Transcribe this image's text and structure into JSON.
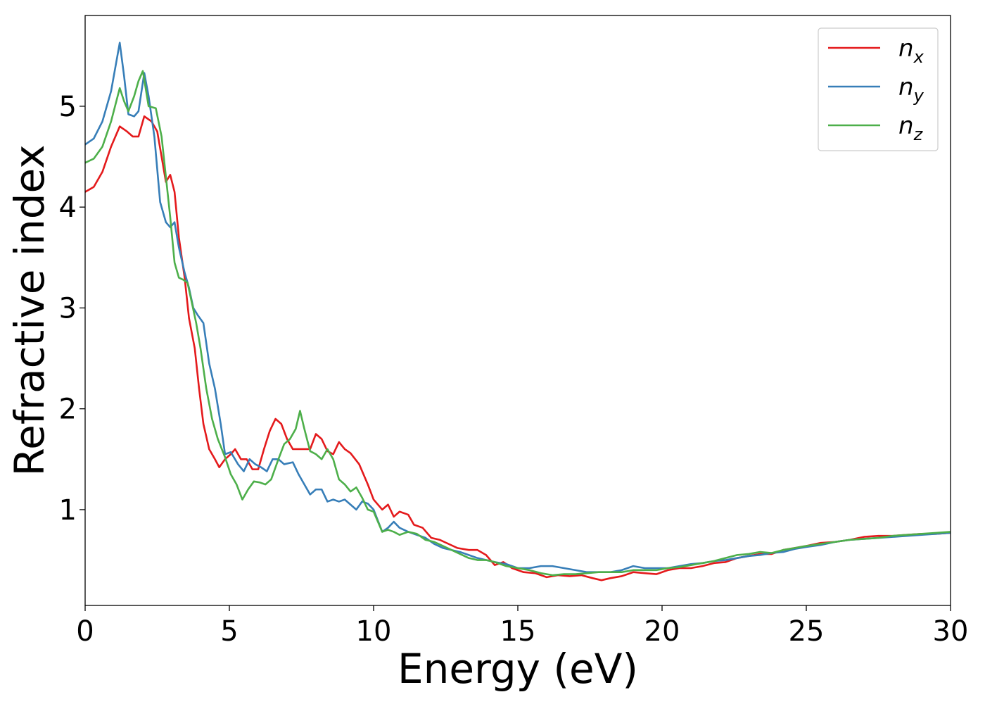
{
  "chart_data": {
    "type": "line",
    "xlabel": "Energy (eV)",
    "ylabel": "Refractive index",
    "xlim": [
      0,
      30
    ],
    "ylim": [
      0.05,
      5.9
    ],
    "xticks": [
      0,
      5,
      10,
      15,
      20,
      25,
      30
    ],
    "yticks": [
      1,
      2,
      3,
      4,
      5
    ],
    "grid": false,
    "legend_position": "top-right",
    "series": [
      {
        "name": "n",
        "subscript": "x",
        "color": "#e41a1c",
        "points": [
          [
            0,
            4.15
          ],
          [
            0.3,
            4.2
          ],
          [
            0.6,
            4.35
          ],
          [
            0.9,
            4.6
          ],
          [
            1.2,
            4.8
          ],
          [
            1.45,
            4.75
          ],
          [
            1.65,
            4.7
          ],
          [
            1.85,
            4.7
          ],
          [
            2.05,
            4.9
          ],
          [
            2.3,
            4.85
          ],
          [
            2.5,
            4.75
          ],
          [
            2.65,
            4.5
          ],
          [
            2.8,
            4.25
          ],
          [
            2.95,
            4.32
          ],
          [
            3.1,
            4.15
          ],
          [
            3.25,
            3.7
          ],
          [
            3.45,
            3.3
          ],
          [
            3.6,
            2.9
          ],
          [
            3.8,
            2.6
          ],
          [
            3.95,
            2.2
          ],
          [
            4.1,
            1.85
          ],
          [
            4.3,
            1.6
          ],
          [
            4.5,
            1.5
          ],
          [
            4.65,
            1.42
          ],
          [
            4.85,
            1.5
          ],
          [
            5.05,
            1.55
          ],
          [
            5.2,
            1.6
          ],
          [
            5.4,
            1.5
          ],
          [
            5.6,
            1.5
          ],
          [
            5.8,
            1.4
          ],
          [
            6.0,
            1.4
          ],
          [
            6.2,
            1.6
          ],
          [
            6.4,
            1.78
          ],
          [
            6.6,
            1.9
          ],
          [
            6.8,
            1.85
          ],
          [
            7.0,
            1.7
          ],
          [
            7.2,
            1.6
          ],
          [
            7.5,
            1.6
          ],
          [
            7.8,
            1.6
          ],
          [
            8.0,
            1.75
          ],
          [
            8.2,
            1.7
          ],
          [
            8.4,
            1.58
          ],
          [
            8.6,
            1.55
          ],
          [
            8.8,
            1.67
          ],
          [
            9.0,
            1.6
          ],
          [
            9.2,
            1.56
          ],
          [
            9.5,
            1.45
          ],
          [
            9.8,
            1.25
          ],
          [
            10.0,
            1.1
          ],
          [
            10.3,
            1.0
          ],
          [
            10.5,
            1.05
          ],
          [
            10.7,
            0.93
          ],
          [
            10.9,
            0.98
          ],
          [
            11.2,
            0.95
          ],
          [
            11.4,
            0.85
          ],
          [
            11.7,
            0.82
          ],
          [
            12.0,
            0.72
          ],
          [
            12.3,
            0.7
          ],
          [
            12.6,
            0.66
          ],
          [
            12.9,
            0.62
          ],
          [
            13.3,
            0.6
          ],
          [
            13.6,
            0.6
          ],
          [
            13.9,
            0.55
          ],
          [
            14.2,
            0.45
          ],
          [
            14.5,
            0.48
          ],
          [
            14.8,
            0.42
          ],
          [
            15.2,
            0.38
          ],
          [
            15.6,
            0.37
          ],
          [
            16.0,
            0.33
          ],
          [
            16.4,
            0.35
          ],
          [
            16.8,
            0.34
          ],
          [
            17.2,
            0.35
          ],
          [
            17.6,
            0.32
          ],
          [
            17.9,
            0.3
          ],
          [
            18.2,
            0.32
          ],
          [
            18.6,
            0.34
          ],
          [
            19.0,
            0.38
          ],
          [
            19.4,
            0.37
          ],
          [
            19.8,
            0.36
          ],
          [
            20.2,
            0.4
          ],
          [
            20.6,
            0.42
          ],
          [
            21.0,
            0.42
          ],
          [
            21.4,
            0.44
          ],
          [
            21.8,
            0.47
          ],
          [
            22.2,
            0.48
          ],
          [
            22.6,
            0.52
          ],
          [
            23.0,
            0.54
          ],
          [
            23.4,
            0.56
          ],
          [
            23.8,
            0.56
          ],
          [
            24.2,
            0.6
          ],
          [
            24.6,
            0.62
          ],
          [
            25.0,
            0.64
          ],
          [
            25.5,
            0.67
          ],
          [
            26.0,
            0.68
          ],
          [
            26.5,
            0.7
          ],
          [
            27.0,
            0.73
          ],
          [
            27.5,
            0.74
          ],
          [
            28.0,
            0.74
          ],
          [
            28.5,
            0.75
          ],
          [
            29.0,
            0.76
          ],
          [
            29.5,
            0.76
          ],
          [
            30.0,
            0.77
          ]
        ]
      },
      {
        "name": "n",
        "subscript": "y",
        "color": "#377eb8",
        "points": [
          [
            0,
            4.62
          ],
          [
            0.3,
            4.68
          ],
          [
            0.6,
            4.85
          ],
          [
            0.9,
            5.15
          ],
          [
            1.2,
            5.63
          ],
          [
            1.35,
            5.3
          ],
          [
            1.5,
            4.92
          ],
          [
            1.7,
            4.9
          ],
          [
            1.85,
            4.95
          ],
          [
            2.05,
            5.33
          ],
          [
            2.2,
            5.1
          ],
          [
            2.4,
            4.7
          ],
          [
            2.6,
            4.05
          ],
          [
            2.8,
            3.85
          ],
          [
            2.95,
            3.8
          ],
          [
            3.1,
            3.85
          ],
          [
            3.25,
            3.6
          ],
          [
            3.45,
            3.35
          ],
          [
            3.6,
            3.2
          ],
          [
            3.75,
            3.0
          ],
          [
            3.9,
            2.93
          ],
          [
            4.1,
            2.85
          ],
          [
            4.3,
            2.45
          ],
          [
            4.5,
            2.2
          ],
          [
            4.7,
            1.85
          ],
          [
            4.85,
            1.55
          ],
          [
            5.05,
            1.57
          ],
          [
            5.3,
            1.45
          ],
          [
            5.5,
            1.38
          ],
          [
            5.7,
            1.5
          ],
          [
            5.9,
            1.45
          ],
          [
            6.1,
            1.42
          ],
          [
            6.3,
            1.38
          ],
          [
            6.5,
            1.5
          ],
          [
            6.7,
            1.5
          ],
          [
            6.9,
            1.45
          ],
          [
            7.2,
            1.47
          ],
          [
            7.4,
            1.35
          ],
          [
            7.6,
            1.25
          ],
          [
            7.8,
            1.15
          ],
          [
            8.0,
            1.2
          ],
          [
            8.2,
            1.2
          ],
          [
            8.4,
            1.08
          ],
          [
            8.6,
            1.1
          ],
          [
            8.8,
            1.08
          ],
          [
            9.0,
            1.1
          ],
          [
            9.2,
            1.05
          ],
          [
            9.4,
            1.0
          ],
          [
            9.6,
            1.08
          ],
          [
            9.8,
            1.06
          ],
          [
            10.0,
            1.0
          ],
          [
            10.3,
            0.78
          ],
          [
            10.5,
            0.82
          ],
          [
            10.7,
            0.88
          ],
          [
            10.9,
            0.82
          ],
          [
            11.2,
            0.78
          ],
          [
            11.5,
            0.75
          ],
          [
            11.8,
            0.72
          ],
          [
            12.1,
            0.66
          ],
          [
            12.4,
            0.62
          ],
          [
            12.7,
            0.6
          ],
          [
            13.0,
            0.58
          ],
          [
            13.3,
            0.55
          ],
          [
            13.6,
            0.52
          ],
          [
            13.9,
            0.5
          ],
          [
            14.2,
            0.48
          ],
          [
            14.6,
            0.46
          ],
          [
            15.0,
            0.42
          ],
          [
            15.4,
            0.42
          ],
          [
            15.8,
            0.44
          ],
          [
            16.2,
            0.44
          ],
          [
            16.6,
            0.42
          ],
          [
            17.0,
            0.4
          ],
          [
            17.4,
            0.38
          ],
          [
            17.8,
            0.38
          ],
          [
            18.2,
            0.38
          ],
          [
            18.6,
            0.4
          ],
          [
            19.0,
            0.44
          ],
          [
            19.4,
            0.42
          ],
          [
            19.8,
            0.42
          ],
          [
            20.2,
            0.42
          ],
          [
            20.6,
            0.44
          ],
          [
            21.0,
            0.46
          ],
          [
            21.4,
            0.47
          ],
          [
            21.8,
            0.49
          ],
          [
            22.2,
            0.5
          ],
          [
            22.6,
            0.52
          ],
          [
            23.0,
            0.54
          ],
          [
            23.4,
            0.55
          ],
          [
            23.8,
            0.57
          ],
          [
            24.2,
            0.58
          ],
          [
            24.6,
            0.61
          ],
          [
            25.0,
            0.63
          ],
          [
            25.5,
            0.65
          ],
          [
            26.0,
            0.68
          ],
          [
            26.5,
            0.7
          ],
          [
            27.0,
            0.71
          ],
          [
            27.5,
            0.72
          ],
          [
            28.0,
            0.73
          ],
          [
            28.5,
            0.74
          ],
          [
            29.0,
            0.75
          ],
          [
            29.5,
            0.76
          ],
          [
            30.0,
            0.77
          ]
        ]
      },
      {
        "name": "n",
        "subscript": "z",
        "color": "#4daf4a",
        "points": [
          [
            0,
            4.44
          ],
          [
            0.3,
            4.48
          ],
          [
            0.6,
            4.6
          ],
          [
            0.9,
            4.85
          ],
          [
            1.2,
            5.18
          ],
          [
            1.35,
            5.05
          ],
          [
            1.5,
            4.95
          ],
          [
            1.7,
            5.1
          ],
          [
            1.85,
            5.25
          ],
          [
            2.0,
            5.35
          ],
          [
            2.2,
            5.0
          ],
          [
            2.45,
            4.98
          ],
          [
            2.65,
            4.7
          ],
          [
            2.8,
            4.3
          ],
          [
            2.95,
            3.9
          ],
          [
            3.1,
            3.45
          ],
          [
            3.25,
            3.3
          ],
          [
            3.4,
            3.28
          ],
          [
            3.55,
            3.25
          ],
          [
            3.7,
            3.05
          ],
          [
            3.85,
            2.85
          ],
          [
            4.0,
            2.6
          ],
          [
            4.2,
            2.2
          ],
          [
            4.4,
            1.9
          ],
          [
            4.6,
            1.7
          ],
          [
            4.85,
            1.52
          ],
          [
            5.05,
            1.35
          ],
          [
            5.25,
            1.25
          ],
          [
            5.45,
            1.1
          ],
          [
            5.65,
            1.2
          ],
          [
            5.85,
            1.28
          ],
          [
            6.05,
            1.27
          ],
          [
            6.25,
            1.25
          ],
          [
            6.45,
            1.3
          ],
          [
            6.7,
            1.5
          ],
          [
            6.9,
            1.65
          ],
          [
            7.1,
            1.7
          ],
          [
            7.3,
            1.8
          ],
          [
            7.45,
            1.98
          ],
          [
            7.6,
            1.8
          ],
          [
            7.8,
            1.58
          ],
          [
            8.0,
            1.55
          ],
          [
            8.2,
            1.5
          ],
          [
            8.4,
            1.6
          ],
          [
            8.6,
            1.5
          ],
          [
            8.8,
            1.3
          ],
          [
            9.0,
            1.25
          ],
          [
            9.2,
            1.18
          ],
          [
            9.4,
            1.22
          ],
          [
            9.6,
            1.12
          ],
          [
            9.8,
            1.0
          ],
          [
            10.0,
            0.98
          ],
          [
            10.3,
            0.78
          ],
          [
            10.5,
            0.8
          ],
          [
            10.7,
            0.78
          ],
          [
            10.9,
            0.75
          ],
          [
            11.2,
            0.78
          ],
          [
            11.5,
            0.76
          ],
          [
            11.8,
            0.7
          ],
          [
            12.1,
            0.68
          ],
          [
            12.4,
            0.64
          ],
          [
            12.7,
            0.6
          ],
          [
            13.0,
            0.56
          ],
          [
            13.3,
            0.52
          ],
          [
            13.6,
            0.5
          ],
          [
            13.9,
            0.5
          ],
          [
            14.2,
            0.48
          ],
          [
            14.6,
            0.44
          ],
          [
            15.0,
            0.42
          ],
          [
            15.4,
            0.4
          ],
          [
            15.8,
            0.37
          ],
          [
            16.2,
            0.35
          ],
          [
            16.6,
            0.36
          ],
          [
            17.0,
            0.36
          ],
          [
            17.4,
            0.37
          ],
          [
            17.8,
            0.38
          ],
          [
            18.2,
            0.38
          ],
          [
            18.6,
            0.38
          ],
          [
            19.0,
            0.4
          ],
          [
            19.4,
            0.4
          ],
          [
            19.8,
            0.4
          ],
          [
            20.2,
            0.42
          ],
          [
            20.6,
            0.43
          ],
          [
            21.0,
            0.45
          ],
          [
            21.4,
            0.47
          ],
          [
            21.8,
            0.49
          ],
          [
            22.2,
            0.52
          ],
          [
            22.6,
            0.55
          ],
          [
            23.0,
            0.56
          ],
          [
            23.4,
            0.58
          ],
          [
            23.8,
            0.57
          ],
          [
            24.2,
            0.6
          ],
          [
            24.6,
            0.62
          ],
          [
            25.0,
            0.64
          ],
          [
            25.5,
            0.66
          ],
          [
            26.0,
            0.68
          ],
          [
            26.5,
            0.7
          ],
          [
            27.0,
            0.71
          ],
          [
            27.5,
            0.72
          ],
          [
            28.0,
            0.74
          ],
          [
            28.5,
            0.75
          ],
          [
            29.0,
            0.76
          ],
          [
            29.5,
            0.77
          ],
          [
            30.0,
            0.78
          ]
        ]
      }
    ]
  }
}
